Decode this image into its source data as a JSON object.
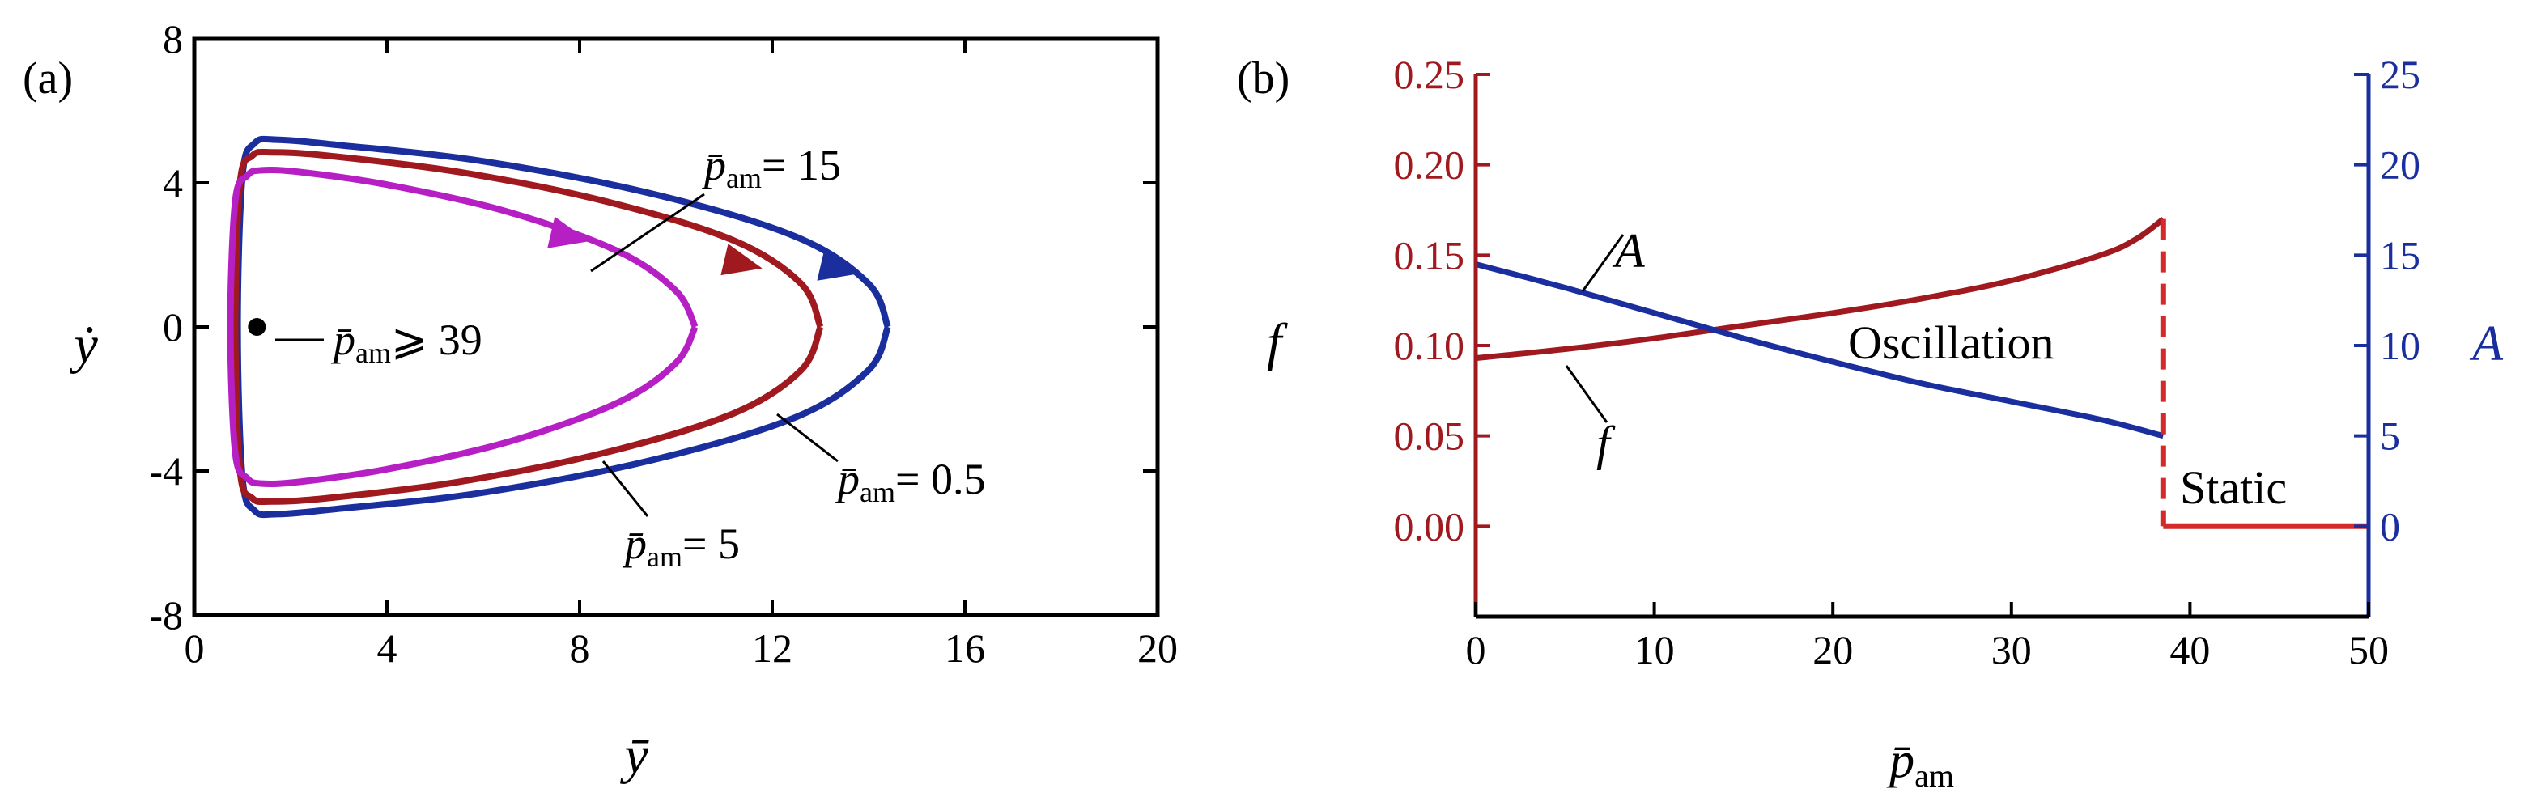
{
  "chart_data": [
    {
      "panel_label": "(a)",
      "type": "line",
      "xlabel": "ȳ",
      "ylabel": "ẏ",
      "xlim": [
        0,
        20
      ],
      "ylim": [
        -8,
        8
      ],
      "xticks": [
        0,
        4,
        8,
        12,
        16,
        20
      ],
      "yticks": [
        -8,
        -4,
        0,
        4,
        8
      ],
      "grid": false,
      "series": [
        {
          "name": "p̄am = 0.5",
          "color": "#1a2e9e",
          "points": [
            [
              14.4,
              0
            ],
            [
              14.0,
              1.2
            ],
            [
              12.5,
              2.5
            ],
            [
              9.5,
              3.7
            ],
            [
              6.0,
              4.6
            ],
            [
              3.0,
              5.05
            ],
            [
              1.7,
              5.2
            ],
            [
              1.25,
              5.1
            ],
            [
              1.0,
              4.2
            ],
            [
              0.9,
              0
            ],
            [
              1.0,
              -4.2
            ],
            [
              1.25,
              -5.1
            ],
            [
              1.7,
              -5.2
            ],
            [
              3.0,
              -5.05
            ],
            [
              6.0,
              -4.6
            ],
            [
              9.5,
              -3.7
            ],
            [
              12.5,
              -2.5
            ],
            [
              14.0,
              -1.2
            ],
            [
              14.4,
              0
            ]
          ],
          "arrow_at": [
            13.4,
            1.6
          ]
        },
        {
          "name": "p̄am = 5",
          "color": "#a0191f",
          "points": [
            [
              13.0,
              0
            ],
            [
              12.6,
              1.2
            ],
            [
              11.2,
              2.4
            ],
            [
              8.5,
              3.5
            ],
            [
              5.5,
              4.3
            ],
            [
              2.8,
              4.75
            ],
            [
              1.6,
              4.85
            ],
            [
              1.2,
              4.75
            ],
            [
              0.95,
              4.0
            ],
            [
              0.85,
              0
            ],
            [
              0.95,
              -4.0
            ],
            [
              1.2,
              -4.75
            ],
            [
              1.6,
              -4.85
            ],
            [
              2.8,
              -4.75
            ],
            [
              5.5,
              -4.3
            ],
            [
              8.5,
              -3.5
            ],
            [
              11.2,
              -2.4
            ],
            [
              12.6,
              -1.2
            ],
            [
              13.0,
              0
            ]
          ],
          "arrow_at": [
            11.4,
            1.75
          ]
        },
        {
          "name": "p̄am = 15",
          "color": "#b51fc4",
          "points": [
            [
              10.4,
              0
            ],
            [
              10.0,
              1.0
            ],
            [
              8.8,
              2.1
            ],
            [
              6.5,
              3.2
            ],
            [
              4.0,
              3.95
            ],
            [
              2.2,
              4.3
            ],
            [
              1.4,
              4.35
            ],
            [
              1.1,
              4.2
            ],
            [
              0.85,
              3.5
            ],
            [
              0.75,
              0
            ],
            [
              0.85,
              -3.5
            ],
            [
              1.1,
              -4.2
            ],
            [
              1.4,
              -4.35
            ],
            [
              2.2,
              -4.3
            ],
            [
              4.0,
              -3.95
            ],
            [
              6.5,
              -3.2
            ],
            [
              8.8,
              -2.1
            ],
            [
              10.0,
              -1.0
            ],
            [
              10.4,
              0
            ]
          ],
          "arrow_at": [
            7.8,
            2.5
          ]
        }
      ],
      "fixed_point": {
        "label": "p̄am ⩾ 39",
        "x": 1.3,
        "y": 0
      },
      "annotations": [
        {
          "label": "p̄am = 15",
          "text": "= 15"
        },
        {
          "label": "p̄am = 0.5",
          "text": "= 0.5"
        },
        {
          "label": "p̄am = 5",
          "text": "= 5"
        },
        {
          "label": "p̄am ⩾ 39",
          "text": "⩾ 39"
        }
      ]
    },
    {
      "panel_label": "(b)",
      "type": "line",
      "xlabel": "p̄am",
      "ylabel_left": "f",
      "ylabel_right": "A",
      "xlim": [
        0,
        50
      ],
      "ylim_left": [
        -0.05,
        0.25
      ],
      "ylim_right": [
        -5,
        25
      ],
      "xticks": [
        0,
        10,
        20,
        30,
        40,
        50
      ],
      "yticks_left": [
        "0.00",
        "0.05",
        "0.10",
        "0.15",
        "0.20",
        "0.25"
      ],
      "yticks_right": [
        0,
        5,
        10,
        15,
        20,
        25
      ],
      "left_axis_color": "#a0191f",
      "right_axis_color": "#1a2e9e",
      "series": [
        {
          "name": "f",
          "axis": "left",
          "color": "#a0191f",
          "points": [
            [
              0,
              0.093
            ],
            [
              5,
              0.098
            ],
            [
              10,
              0.104
            ],
            [
              15,
              0.111
            ],
            [
              20,
              0.118
            ],
            [
              25,
              0.126
            ],
            [
              30,
              0.136
            ],
            [
              35,
              0.15
            ],
            [
              37,
              0.159
            ],
            [
              38.5,
              0.17
            ]
          ]
        },
        {
          "name": "A",
          "axis": "right",
          "color": "#1a2e9e",
          "points": [
            [
              0,
              14.5
            ],
            [
              5,
              13.2
            ],
            [
              10,
              11.8
            ],
            [
              15,
              10.4
            ],
            [
              20,
              9.1
            ],
            [
              25,
              7.9
            ],
            [
              30,
              6.9
            ],
            [
              35,
              5.9
            ],
            [
              38.5,
              5.0
            ]
          ]
        },
        {
          "name": "f static",
          "axis": "left",
          "color": "#d42a2a",
          "points": [
            [
              38.5,
              0
            ],
            [
              50,
              0
            ]
          ]
        }
      ],
      "transition": {
        "x": 38.5,
        "style": "dashed",
        "color": "#d42a2a",
        "from": 0.17,
        "to": 0
      },
      "region_labels": [
        "Oscillation",
        "Static"
      ],
      "curve_labels": [
        "A",
        "f"
      ]
    }
  ]
}
